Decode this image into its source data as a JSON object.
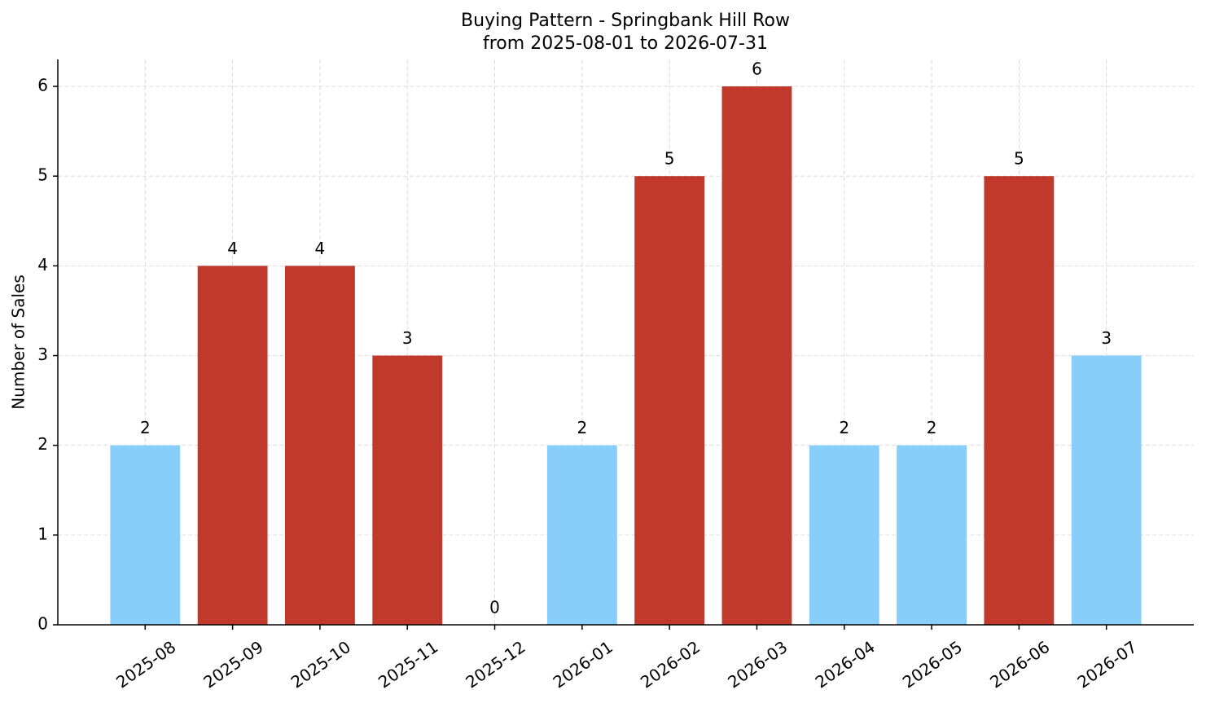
{
  "chart_data": {
    "type": "bar",
    "title": "Buying Pattern - Springbank Hill Row",
    "subtitle": "from 2025-08-01 to 2026-07-31",
    "y_label": "Number of Sales",
    "categories": [
      "2025-08",
      "2025-09",
      "2025-10",
      "2025-11",
      "2025-12",
      "2026-01",
      "2026-02",
      "2026-03",
      "2026-04",
      "2026-05",
      "2026-06",
      "2026-07"
    ],
    "values": [
      2,
      4,
      4,
      3,
      0,
      2,
      5,
      6,
      2,
      2,
      5,
      3
    ],
    "colors": [
      "#87cefa",
      "#c0392b",
      "#c0392b",
      "#c0392b",
      "#c0392b",
      "#87cefa",
      "#c0392b",
      "#c0392b",
      "#87cefa",
      "#87cefa",
      "#c0392b",
      "#87cefa"
    ],
    "ylim": [
      0,
      6.3
    ],
    "yticks": [
      0,
      1,
      2,
      3,
      4,
      5,
      6
    ],
    "grid": true
  }
}
